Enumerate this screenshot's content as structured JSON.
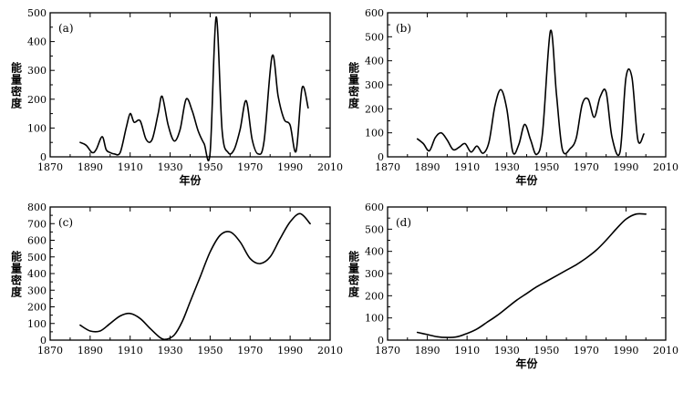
{
  "chart_data": [
    {
      "id": "a",
      "type": "line",
      "panel_label": "(a)",
      "xlabel": "年份",
      "ylabel": "能量密度",
      "xlim": [
        1870,
        2010
      ],
      "ylim": [
        0,
        500
      ],
      "xticks": [
        1870,
        1890,
        1910,
        1930,
        1950,
        1970,
        1990,
        2010
      ],
      "yticks": [
        0,
        100,
        200,
        300,
        400,
        500
      ],
      "grid": false,
      "x": [
        1885,
        1888,
        1891,
        1893,
        1896,
        1898,
        1900,
        1902,
        1905,
        1908,
        1910,
        1912,
        1915,
        1918,
        1921,
        1924,
        1926,
        1929,
        1932,
        1935,
        1938,
        1941,
        1944,
        1947,
        1950,
        1953,
        1956,
        1959,
        1962,
        1965,
        1968,
        1971,
        1974,
        1977,
        1981,
        1984,
        1987,
        1990,
        1993,
        1996,
        1999
      ],
      "series": [
        {
          "values": [
            50,
            40,
            15,
            25,
            70,
            25,
            15,
            10,
            15,
            100,
            150,
            120,
            125,
            60,
            60,
            150,
            210,
            110,
            55,
            95,
            200,
            160,
            90,
            45,
            15,
            485,
            90,
            15,
            25,
            95,
            195,
            60,
            10,
            55,
            350,
            210,
            130,
            110,
            20,
            240,
            170
          ]
        }
      ]
    },
    {
      "id": "b",
      "type": "line",
      "panel_label": "(b)",
      "xlabel": "年份",
      "ylabel": "能量密度",
      "xlim": [
        1870,
        2010
      ],
      "ylim": [
        0,
        600
      ],
      "xticks": [
        1870,
        1890,
        1910,
        1930,
        1950,
        1970,
        1990,
        2010
      ],
      "yticks": [
        0,
        100,
        200,
        300,
        400,
        500,
        600
      ],
      "grid": false,
      "x": [
        1885,
        1888,
        1891,
        1894,
        1897,
        1900,
        1903,
        1906,
        1909,
        1912,
        1915,
        1918,
        1921,
        1924,
        1927,
        1930,
        1933,
        1936,
        1939,
        1942,
        1945,
        1948,
        1952,
        1955,
        1958,
        1962,
        1965,
        1968,
        1971,
        1974,
        1977,
        1980,
        1983,
        1987,
        1990,
        1993,
        1996,
        1999
      ],
      "series": [
        {
          "values": [
            75,
            55,
            25,
            80,
            100,
            70,
            30,
            40,
            55,
            20,
            45,
            15,
            60,
            210,
            280,
            200,
            20,
            50,
            135,
            70,
            10,
            100,
            525,
            260,
            30,
            35,
            80,
            220,
            240,
            165,
            250,
            270,
            80,
            20,
            330,
            330,
            70,
            95
          ]
        }
      ]
    },
    {
      "id": "c",
      "type": "line",
      "panel_label": "(c)",
      "xlabel": "",
      "ylabel": "能量密度",
      "xlim": [
        1870,
        2010
      ],
      "ylim": [
        0,
        800
      ],
      "xticks": [
        1870,
        1890,
        1910,
        1930,
        1950,
        1970,
        1990,
        2010
      ],
      "yticks": [
        0,
        100,
        200,
        300,
        400,
        500,
        600,
        700,
        800
      ],
      "grid": false,
      "x": [
        1885,
        1890,
        1895,
        1900,
        1905,
        1910,
        1915,
        1920,
        1925,
        1928,
        1932,
        1936,
        1940,
        1945,
        1950,
        1955,
        1960,
        1965,
        1970,
        1975,
        1980,
        1985,
        1990,
        1995,
        2000
      ],
      "series": [
        {
          "values": [
            90,
            55,
            55,
            100,
            145,
            160,
            130,
            70,
            15,
            5,
            30,
            110,
            230,
            380,
            530,
            630,
            650,
            590,
            490,
            460,
            500,
            610,
            710,
            760,
            700
          ]
        }
      ]
    },
    {
      "id": "d",
      "type": "line",
      "panel_label": "(d)",
      "xlabel": "年份",
      "ylabel": "能量密度",
      "xlim": [
        1870,
        2010
      ],
      "ylim": [
        0,
        600
      ],
      "xticks": [
        1870,
        1890,
        1910,
        1930,
        1950,
        1970,
        1990,
        2010
      ],
      "yticks": [
        0,
        100,
        200,
        300,
        400,
        500,
        600
      ],
      "grid": false,
      "x": [
        1885,
        1890,
        1895,
        1900,
        1905,
        1910,
        1915,
        1920,
        1925,
        1930,
        1935,
        1940,
        1945,
        1950,
        1955,
        1960,
        1965,
        1970,
        1975,
        1980,
        1985,
        1990,
        1995,
        2000
      ],
      "series": [
        {
          "values": [
            35,
            25,
            15,
            12,
            15,
            30,
            50,
            80,
            110,
            145,
            180,
            210,
            240,
            265,
            290,
            315,
            340,
            370,
            405,
            450,
            500,
            545,
            568,
            568
          ]
        }
      ]
    }
  ]
}
